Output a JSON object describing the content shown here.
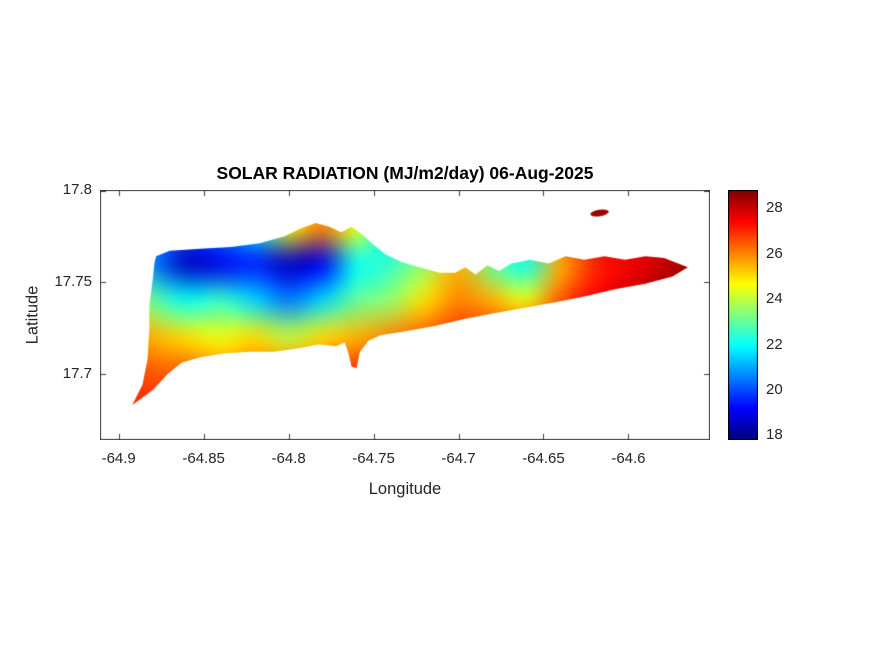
{
  "figure": {
    "title": "SOLAR RADIATION (MJ/m2/day) 06-Aug-2025",
    "xlabel": "Longitude",
    "ylabel": "Latitude"
  },
  "chart_data": {
    "type": "heatmap",
    "title": "SOLAR RADIATION (MJ/m2/day) 06-Aug-2025",
    "xlabel": "Longitude",
    "ylabel": "Latitude",
    "xlim": [
      -64.911,
      -64.552
    ],
    "ylim": [
      17.664,
      17.8
    ],
    "xticks": [
      -64.9,
      -64.85,
      -64.8,
      -64.75,
      -64.7,
      -64.65,
      -64.6
    ],
    "yticks": [
      17.7,
      17.75,
      17.8
    ],
    "grid_lines": "off",
    "colormap": "jet",
    "colorbar": {
      "min": 17.8,
      "max": 28.8,
      "ticks": [
        18,
        20,
        22,
        24,
        26,
        28
      ],
      "position": "right"
    },
    "grid": {
      "lon": [
        -64.92,
        -64.9,
        -64.88,
        -64.86,
        -64.84,
        -64.82,
        -64.8,
        -64.78,
        -64.76,
        -64.74,
        -64.72,
        -64.7,
        -64.68,
        -64.66,
        -64.64,
        -64.62,
        -64.6,
        -64.58,
        -64.56,
        -64.54
      ],
      "lat": [
        17.8,
        17.78,
        17.76,
        17.74,
        17.72,
        17.7,
        17.68,
        17.66
      ],
      "values": [
        [
          26,
          25,
          23,
          22,
          22,
          23.5,
          25.5,
          26.5,
          25,
          23.5,
          24,
          25,
          24.5,
          25,
          27.5,
          28.5,
          28,
          28,
          28.5,
          28.5
        ],
        [
          24,
          23,
          21,
          20.5,
          21,
          22,
          24.5,
          26,
          24.5,
          22,
          23,
          25,
          24,
          24,
          27,
          28.5,
          28,
          28,
          28.5,
          28.5
        ],
        [
          25,
          23,
          20.5,
          18.5,
          19,
          19.5,
          18.5,
          19,
          22,
          22.5,
          23.5,
          25.5,
          23,
          22,
          25.5,
          27,
          27.5,
          28,
          28.5,
          28.5
        ],
        [
          26,
          25,
          23,
          22,
          22.5,
          21.5,
          20.5,
          21.5,
          23,
          23.5,
          25,
          26,
          25.5,
          24.5,
          26.5,
          27.5,
          28,
          28.5,
          28.5,
          28.5
        ],
        [
          27,
          26,
          25.5,
          25,
          24.5,
          25,
          24,
          25,
          25.5,
          26,
          26.5,
          27,
          27,
          27.5,
          28,
          28.5,
          28.5,
          28.5,
          28.5,
          28.5
        ],
        [
          27.5,
          27,
          26.5,
          26.5,
          26,
          26.5,
          26.5,
          27,
          27,
          27.5,
          27.5,
          28,
          28,
          28.5,
          28.5,
          28.5,
          28.5,
          28.5,
          28.5,
          28.5
        ],
        [
          27.5,
          27,
          27,
          27,
          27,
          27.5,
          27.5,
          27.5,
          28,
          28,
          28,
          28.5,
          28.5,
          28.5,
          28.5,
          28.5,
          28.5,
          28.5,
          28.5,
          28.5
        ],
        [
          28,
          28,
          28,
          28,
          28,
          28,
          28,
          28,
          28,
          28,
          28,
          28.5,
          28.5,
          28.5,
          28.5,
          28.5,
          28.5,
          28.5,
          28.5,
          28.5
        ]
      ]
    },
    "island_outline": [
      [
        -64.878,
        17.764
      ],
      [
        -64.87,
        17.767
      ],
      [
        -64.852,
        17.768
      ],
      [
        -64.834,
        17.769
      ],
      [
        -64.817,
        17.771
      ],
      [
        -64.802,
        17.775
      ],
      [
        -64.793,
        17.779
      ],
      [
        -64.784,
        17.782
      ],
      [
        -64.776,
        17.78
      ],
      [
        -64.769,
        17.777
      ],
      [
        -64.763,
        17.78
      ],
      [
        -64.757,
        17.776
      ],
      [
        -64.751,
        17.771
      ],
      [
        -64.743,
        17.765
      ],
      [
        -64.734,
        17.761
      ],
      [
        -64.723,
        17.758
      ],
      [
        -64.711,
        17.755
      ],
      [
        -64.702,
        17.755
      ],
      [
        -64.696,
        17.758
      ],
      [
        -64.69,
        17.754
      ],
      [
        -64.683,
        17.759
      ],
      [
        -64.676,
        17.756
      ],
      [
        -64.669,
        17.76
      ],
      [
        -64.658,
        17.762
      ],
      [
        -64.647,
        17.76
      ],
      [
        -64.637,
        17.764
      ],
      [
        -64.626,
        17.762
      ],
      [
        -64.614,
        17.764
      ],
      [
        -64.602,
        17.762
      ],
      [
        -64.59,
        17.764
      ],
      [
        -64.579,
        17.763
      ],
      [
        -64.565,
        17.758
      ],
      [
        -64.574,
        17.753
      ],
      [
        -64.59,
        17.749
      ],
      [
        -64.608,
        17.746
      ],
      [
        -64.626,
        17.742
      ],
      [
        -64.643,
        17.739
      ],
      [
        -64.661,
        17.736
      ],
      [
        -64.679,
        17.733
      ],
      [
        -64.696,
        17.73
      ],
      [
        -64.714,
        17.726
      ],
      [
        -64.732,
        17.723
      ],
      [
        -64.746,
        17.721
      ],
      [
        -64.753,
        17.718
      ],
      [
        -64.758,
        17.712
      ],
      [
        -64.76,
        17.703
      ],
      [
        -64.763,
        17.704
      ],
      [
        -64.765,
        17.712
      ],
      [
        -64.767,
        17.717
      ],
      [
        -64.772,
        17.715
      ],
      [
        -64.782,
        17.716
      ],
      [
        -64.793,
        17.714
      ],
      [
        -64.808,
        17.712
      ],
      [
        -64.823,
        17.712
      ],
      [
        -64.838,
        17.711
      ],
      [
        -64.852,
        17.709
      ],
      [
        -64.863,
        17.706
      ],
      [
        -64.871,
        17.7
      ],
      [
        -64.88,
        17.691
      ],
      [
        -64.892,
        17.683
      ],
      [
        -64.886,
        17.694
      ],
      [
        -64.883,
        17.708
      ],
      [
        -64.882,
        17.724
      ],
      [
        -64.882,
        17.737
      ],
      [
        -64.88,
        17.751
      ],
      [
        -64.879,
        17.76
      ]
    ],
    "buck_island": {
      "lon": -64.617,
      "lat": 17.7875,
      "rx": 0.0055,
      "ry": 0.0018
    }
  }
}
